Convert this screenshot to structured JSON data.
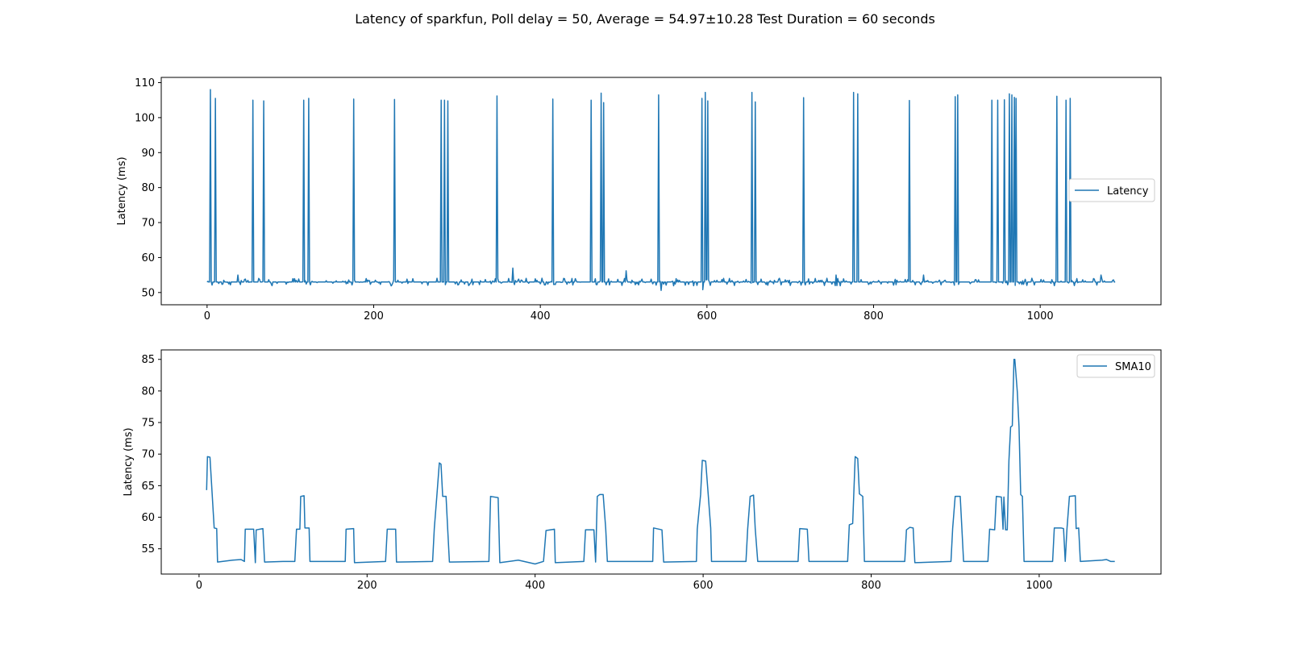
{
  "figure_title": "Latency of sparkfun, Poll delay = 50, Average = 54.97±10.28 Test Duration = 60 seconds",
  "colors": {
    "line": "#1f77b4"
  },
  "chart_data": [
    {
      "type": "line",
      "xlabel": "",
      "ylabel": "Latency (ms)",
      "xlim": [
        -55,
        1145
      ],
      "ylim": [
        46.5,
        111.5
      ],
      "xticks": [
        0,
        200,
        400,
        600,
        800,
        1000
      ],
      "yticks": [
        50,
        60,
        70,
        80,
        90,
        100,
        110
      ],
      "legend": "center-right",
      "grid": false,
      "series": [
        {
          "name": "Latency",
          "baseline": 53,
          "x_range": [
            0,
            1090
          ],
          "spikes": [
            {
              "x": 4,
              "y": 108
            },
            {
              "x": 10,
              "y": 105.5
            },
            {
              "x": 55,
              "y": 105
            },
            {
              "x": 68,
              "y": 104.8
            },
            {
              "x": 116,
              "y": 105
            },
            {
              "x": 122,
              "y": 105.5
            },
            {
              "x": 176,
              "y": 105.3
            },
            {
              "x": 225,
              "y": 105.2
            },
            {
              "x": 281,
              "y": 105
            },
            {
              "x": 285,
              "y": 105
            },
            {
              "x": 289,
              "y": 104.8
            },
            {
              "x": 348,
              "y": 106.2
            },
            {
              "x": 415,
              "y": 105.3
            },
            {
              "x": 461,
              "y": 105
            },
            {
              "x": 473,
              "y": 107
            },
            {
              "x": 476,
              "y": 104.3
            },
            {
              "x": 542,
              "y": 106.5
            },
            {
              "x": 594,
              "y": 105.5
            },
            {
              "x": 598,
              "y": 107.2
            },
            {
              "x": 601,
              "y": 104.8
            },
            {
              "x": 654,
              "y": 107.2
            },
            {
              "x": 658,
              "y": 104.5
            },
            {
              "x": 716,
              "y": 105.7
            },
            {
              "x": 776,
              "y": 107.2
            },
            {
              "x": 781,
              "y": 106.8
            },
            {
              "x": 843,
              "y": 104.9
            },
            {
              "x": 898,
              "y": 106
            },
            {
              "x": 901,
              "y": 106.5
            },
            {
              "x": 942,
              "y": 105
            },
            {
              "x": 949,
              "y": 105
            },
            {
              "x": 957,
              "y": 105.1
            },
            {
              "x": 963,
              "y": 106.8
            },
            {
              "x": 966,
              "y": 106.5
            },
            {
              "x": 969,
              "y": 105.8
            },
            {
              "x": 971,
              "y": 105.5
            },
            {
              "x": 1020,
              "y": 106.1
            },
            {
              "x": 1031,
              "y": 105
            },
            {
              "x": 1036,
              "y": 105.5
            }
          ],
          "dips": [
            {
              "x": 545,
              "y": 50.6
            },
            {
              "x": 595,
              "y": 50.8
            },
            {
              "x": 654,
              "y": 49.6
            }
          ],
          "bumps": [
            {
              "x": 37,
              "y": 55
            },
            {
              "x": 367,
              "y": 57
            },
            {
              "x": 503,
              "y": 56.2
            },
            {
              "x": 755,
              "y": 55
            },
            {
              "x": 860,
              "y": 55
            },
            {
              "x": 1073,
              "y": 55
            }
          ]
        }
      ]
    },
    {
      "type": "line",
      "xlabel": "",
      "ylabel": "Latency (ms)",
      "xlim": [
        -45,
        1145
      ],
      "ylim": [
        51,
        86.5
      ],
      "xticks": [
        0,
        200,
        400,
        600,
        800,
        1000
      ],
      "yticks": [
        55,
        60,
        65,
        70,
        75,
        80,
        85
      ],
      "legend": "top-right",
      "grid": false,
      "series": [
        {
          "name": "SMA10",
          "points": [
            [
              9,
              64.3
            ],
            [
              10,
              69.6
            ],
            [
              13,
              69.5
            ],
            [
              18,
              58.3
            ],
            [
              21,
              58.2
            ],
            [
              22,
              52.9
            ],
            [
              40,
              53.2
            ],
            [
              50,
              53.3
            ],
            [
              54,
              53
            ],
            [
              55,
              58.1
            ],
            [
              65,
              58.1
            ],
            [
              67,
              52.8
            ],
            [
              68,
              58
            ],
            [
              76,
              58.2
            ],
            [
              78,
              52.9
            ],
            [
              100,
              53
            ],
            [
              114,
              53
            ],
            [
              116,
              58.1
            ],
            [
              120,
              58.1
            ],
            [
              121,
              63.3
            ],
            [
              125,
              63.4
            ],
            [
              126,
              58.3
            ],
            [
              131,
              58.3
            ],
            [
              132,
              53
            ],
            [
              174,
              53
            ],
            [
              175,
              58.1
            ],
            [
              184,
              58.2
            ],
            [
              185,
              52.8
            ],
            [
              222,
              53
            ],
            [
              224,
              58.1
            ],
            [
              234,
              58.1
            ],
            [
              235,
              52.9
            ],
            [
              278,
              53
            ],
            [
              280,
              58.2
            ],
            [
              283,
              63.3
            ],
            [
              286,
              68.6
            ],
            [
              288,
              68.4
            ],
            [
              290,
              63.3
            ],
            [
              294,
              63.3
            ],
            [
              296,
              58
            ],
            [
              298,
              52.9
            ],
            [
              345,
              53
            ],
            [
              347,
              63.3
            ],
            [
              356,
              63.1
            ],
            [
              358,
              52.8
            ],
            [
              380,
              53.2
            ],
            [
              400,
              52.6
            ],
            [
              410,
              53
            ],
            [
              413,
              57.9
            ],
            [
              423,
              58.1
            ],
            [
              424,
              52.8
            ],
            [
              458,
              53
            ],
            [
              460,
              58
            ],
            [
              470,
              58
            ],
            [
              472,
              52.9
            ],
            [
              474,
              63.3
            ],
            [
              477,
              63.6
            ],
            [
              481,
              63.6
            ],
            [
              484,
              58.3
            ],
            [
              486,
              53
            ],
            [
              540,
              53
            ],
            [
              541,
              58.3
            ],
            [
              551,
              58
            ],
            [
              553,
              52.9
            ],
            [
              592,
              53
            ],
            [
              593,
              58.1
            ],
            [
              597,
              63.6
            ],
            [
              599,
              69
            ],
            [
              603,
              68.9
            ],
            [
              606,
              63.7
            ],
            [
              609,
              58.3
            ],
            [
              610,
              53
            ],
            [
              651,
              53
            ],
            [
              653,
              58.1
            ],
            [
              656,
              63.3
            ],
            [
              660,
              63.5
            ],
            [
              662,
              58.2
            ],
            [
              665,
              53
            ],
            [
              713,
              53
            ],
            [
              715,
              58.2
            ],
            [
              724,
              58.1
            ],
            [
              726,
              53
            ],
            [
              772,
              53
            ],
            [
              774,
              58.8
            ],
            [
              778,
              59
            ],
            [
              781,
              69.6
            ],
            [
              784,
              69.3
            ],
            [
              786,
              63.7
            ],
            [
              790,
              63.3
            ],
            [
              792,
              53
            ],
            [
              840,
              53
            ],
            [
              842,
              58
            ],
            [
              846,
              58.4
            ],
            [
              850,
              58.3
            ],
            [
              852,
              52.8
            ],
            [
              895,
              53
            ],
            [
              897,
              58.2
            ],
            [
              900,
              63.3
            ],
            [
              906,
              63.3
            ],
            [
              908,
              58.2
            ],
            [
              910,
              53
            ],
            [
              939,
              53
            ],
            [
              941,
              58.1
            ],
            [
              947,
              58
            ],
            [
              949,
              63.3
            ],
            [
              955,
              63.2
            ],
            [
              957,
              58.1
            ],
            [
              958,
              63.2
            ],
            [
              960,
              58
            ],
            [
              962,
              58
            ],
            [
              964,
              69
            ],
            [
              966,
              74.3
            ],
            [
              968,
              74.5
            ],
            [
              970,
              85
            ],
            [
              971,
              85
            ],
            [
              974,
              79.8
            ],
            [
              976,
              74.3
            ],
            [
              978,
              63.6
            ],
            [
              980,
              63.3
            ],
            [
              982,
              53
            ],
            [
              1016,
              53
            ],
            [
              1018,
              58.3
            ],
            [
              1026,
              58.3
            ],
            [
              1029,
              58.2
            ],
            [
              1031,
              53
            ],
            [
              1033,
              58
            ],
            [
              1036,
              63.3
            ],
            [
              1043,
              63.4
            ],
            [
              1044,
              58.2
            ],
            [
              1047,
              58.3
            ],
            [
              1049,
              53
            ],
            [
              1075,
              53.2
            ],
            [
              1080,
              53.3
            ],
            [
              1085,
              53
            ],
            [
              1090,
              53
            ]
          ]
        }
      ]
    }
  ]
}
